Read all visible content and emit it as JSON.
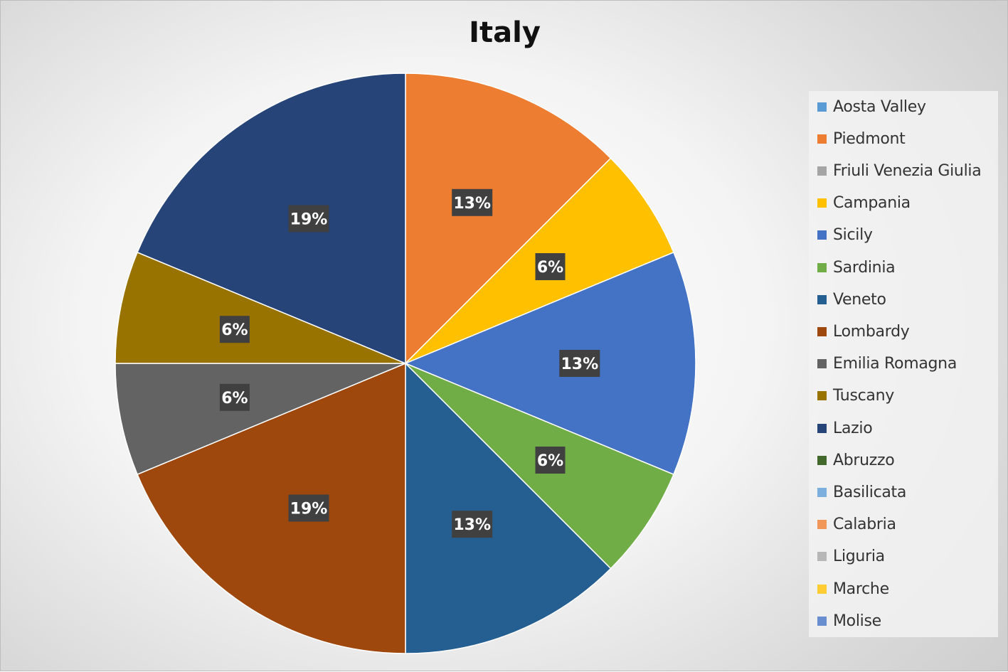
{
  "chart_data": {
    "type": "pie",
    "title": "Italy",
    "start_angle_deg": 0,
    "direction": "clockwise",
    "data_label_style": {
      "background": "#404040",
      "color": "#ffffff"
    },
    "legend_position": "right",
    "slices": [
      {
        "name": "Aosta Valley",
        "value": 0,
        "label": "",
        "color": "#5B9BD5"
      },
      {
        "name": "Piedmont",
        "value": 12.5,
        "label": "13%",
        "color": "#ED7D31"
      },
      {
        "name": "Friuli Venezia Giulia",
        "value": 0,
        "label": "",
        "color": "#A5A5A5"
      },
      {
        "name": "Campania",
        "value": 6.25,
        "label": "6%",
        "color": "#FFC000"
      },
      {
        "name": "Sicily",
        "value": 12.5,
        "label": "13%",
        "color": "#4472C4"
      },
      {
        "name": "Sardinia",
        "value": 6.25,
        "label": "6%",
        "color": "#70AD47"
      },
      {
        "name": "Veneto",
        "value": 12.5,
        "label": "13%",
        "color": "#255E91"
      },
      {
        "name": "Lombardy",
        "value": 18.75,
        "label": "19%",
        "color": "#9E480E"
      },
      {
        "name": "Emilia Romagna",
        "value": 6.25,
        "label": "6%",
        "color": "#636363"
      },
      {
        "name": "Tuscany",
        "value": 6.25,
        "label": "6%",
        "color": "#997300"
      },
      {
        "name": "Lazio",
        "value": 18.75,
        "label": "19%",
        "color": "#264478"
      },
      {
        "name": "Abruzzo",
        "value": 0,
        "label": "",
        "color": "#43682B"
      },
      {
        "name": "Basilicata",
        "value": 0,
        "label": "",
        "color": "#7CAFDD"
      },
      {
        "name": "Calabria",
        "value": 0,
        "label": "",
        "color": "#F1975A"
      },
      {
        "name": "Liguria",
        "value": 0,
        "label": "",
        "color": "#B7B7B7"
      },
      {
        "name": "Marche",
        "value": 0,
        "label": "",
        "color": "#FFCD33"
      },
      {
        "name": "Molise",
        "value": 0,
        "label": "",
        "color": "#698ED0"
      }
    ]
  }
}
